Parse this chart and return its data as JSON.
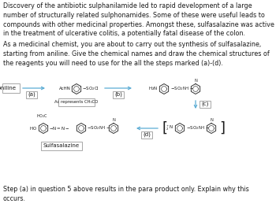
{
  "bg_color": "#ffffff",
  "text_color": "#1a1a1a",
  "arrow_color": "#5bacd4",
  "box_color": "#999999",
  "font_size_body": 5.8,
  "font_size_chem": 5.0,
  "font_size_label": 4.8,
  "font_size_tiny": 4.0,
  "para1": "Discovery of the antibiotic sulphanilamide led to rapid development of a large\nnumber of structurally related sulphonamides. Some of these were useful leads to\ncompounds with other medicinal properties. Amongst these, sulfasalazine was active\nin the treatment of ulcerative colitis, a potentially fatal disease of the colon.",
  "para2": "As a medicinal chemist, you are about to carry out the synthesis of sulfasalazine,\nstarting from aniline. Give the chemical names and draw the chemical structures of\nthe reagents you will need to use for the all the steps marked (a)-(d).",
  "footer": "Step (a) in question 5 above results in the para product only. Explain why this\noccurs.",
  "ac_represents": "Ac represents CH₃CO",
  "sulfasalazine_label": "Sulfasalazine",
  "label_a": "(a)",
  "label_b": "(b)",
  "label_c": "(c)",
  "label_d": "(d)"
}
